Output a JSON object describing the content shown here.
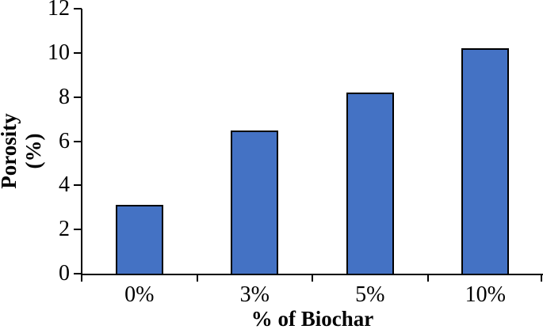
{
  "figure": {
    "background": "#ffffff"
  },
  "chart_data": {
    "type": "bar",
    "title": "",
    "categories": [
      "0%",
      "3%",
      "5%",
      "10%"
    ],
    "values": [
      3.1,
      6.5,
      8.2,
      10.2
    ],
    "xlabel": "% of Biochar",
    "ylabel": "Porosity (%)",
    "ylabel_lines": [
      "Porosity",
      "(%)"
    ],
    "ylim": [
      0,
      12
    ],
    "yticks": [
      0,
      2,
      4,
      6,
      8,
      10,
      12
    ],
    "grid": false,
    "legend": "none",
    "bar_color": "#4472C4",
    "bar_border_color": "#000000",
    "axis_color": "#000000",
    "text_color": "#000000"
  }
}
